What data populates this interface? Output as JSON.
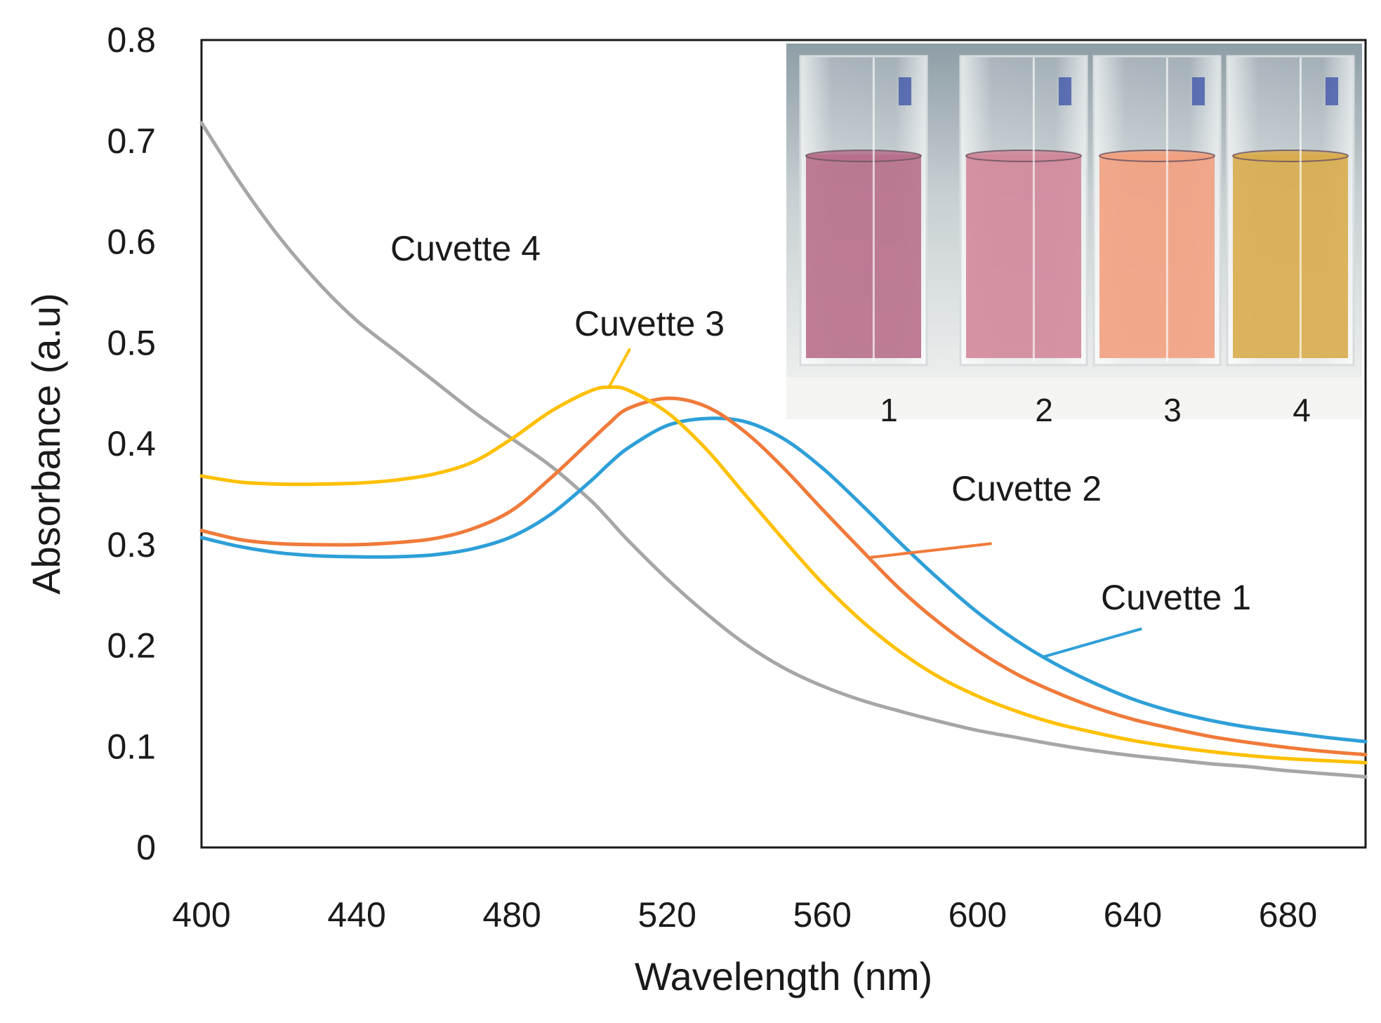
{
  "chart_data": {
    "type": "line",
    "title": "",
    "xlabel": "Wavelength (nm)",
    "ylabel": "Absorbance (a.u)",
    "xlim": [
      400,
      700
    ],
    "ylim": [
      0,
      0.8
    ],
    "x_ticks": [
      400,
      440,
      480,
      520,
      560,
      600,
      640,
      680
    ],
    "x_tick_labels": [
      "400",
      "440",
      "480",
      "520",
      "560",
      "600",
      "640",
      "680"
    ],
    "y_ticks": [
      0,
      0.1,
      0.2,
      0.3,
      0.4,
      0.5,
      0.6,
      0.7,
      0.8
    ],
    "y_tick_labels": [
      "0",
      "0.1",
      "0.2",
      "0.3",
      "0.4",
      "0.5",
      "0.6",
      "0.7",
      "0.8"
    ],
    "grid": false,
    "x": [
      400,
      410,
      420,
      430,
      440,
      450,
      460,
      470,
      480,
      490,
      500,
      505,
      510,
      520,
      530,
      540,
      550,
      560,
      570,
      580,
      590,
      600,
      610,
      620,
      630,
      640,
      650,
      660,
      670,
      680,
      690,
      700
    ],
    "series": [
      {
        "name": "Cuvette 1",
        "color": "#2e9fd8",
        "label_wavelength": 617,
        "values": [
          0.307,
          0.298,
          0.292,
          0.289,
          0.288,
          0.288,
          0.29,
          0.296,
          0.308,
          0.33,
          0.362,
          0.38,
          0.396,
          0.418,
          0.425,
          0.422,
          0.405,
          0.376,
          0.34,
          0.302,
          0.266,
          0.233,
          0.205,
          0.182,
          0.163,
          0.147,
          0.135,
          0.126,
          0.119,
          0.114,
          0.109,
          0.105
        ]
      },
      {
        "name": "Cuvette 2",
        "color": "#f07a3a",
        "label_wavelength": 572,
        "values": [
          0.314,
          0.305,
          0.301,
          0.3,
          0.3,
          0.302,
          0.306,
          0.316,
          0.334,
          0.366,
          0.402,
          0.42,
          0.435,
          0.445,
          0.437,
          0.412,
          0.376,
          0.335,
          0.295,
          0.256,
          0.223,
          0.195,
          0.172,
          0.154,
          0.139,
          0.127,
          0.118,
          0.11,
          0.104,
          0.099,
          0.095,
          0.092
        ]
      },
      {
        "name": "Cuvette 3",
        "color": "#ffc000",
        "label_wavelength": 505,
        "values": [
          0.368,
          0.362,
          0.36,
          0.36,
          0.361,
          0.364,
          0.37,
          0.382,
          0.405,
          0.432,
          0.452,
          0.456,
          0.453,
          0.431,
          0.395,
          0.35,
          0.305,
          0.262,
          0.225,
          0.194,
          0.169,
          0.15,
          0.135,
          0.123,
          0.114,
          0.106,
          0.1,
          0.095,
          0.091,
          0.088,
          0.086,
          0.084
        ]
      },
      {
        "name": "Cuvette 4",
        "color": "#a6a6a6",
        "label_wavelength": 440,
        "values": [
          0.718,
          0.658,
          0.605,
          0.56,
          0.522,
          0.492,
          0.462,
          0.432,
          0.405,
          0.378,
          0.345,
          0.325,
          0.304,
          0.266,
          0.232,
          0.202,
          0.178,
          0.16,
          0.146,
          0.135,
          0.125,
          0.116,
          0.109,
          0.102,
          0.096,
          0.091,
          0.087,
          0.083,
          0.08,
          0.076,
          0.073,
          0.07
        ]
      }
    ],
    "inset": {
      "labels": [
        "1",
        "2",
        "3",
        "4"
      ],
      "liquid_colors": [
        "#b86f8c",
        "#d1879a",
        "#f2a07f",
        "#d9ac4c"
      ]
    }
  }
}
